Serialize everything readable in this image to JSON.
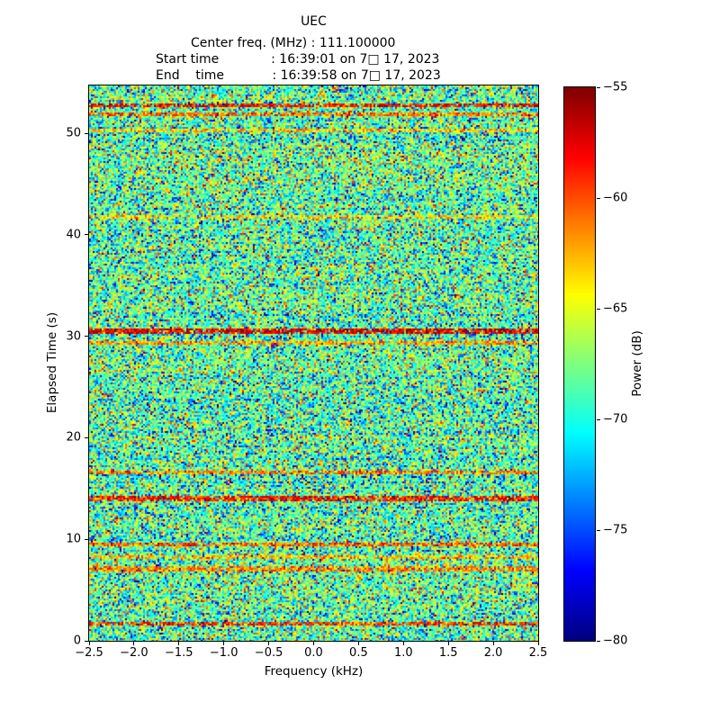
{
  "header": {
    "title": "UEC",
    "center_line": "Center freq. (MHz) : 111.100000",
    "start_line": "Start time             : 16:39:01 on 7□ 17, 2023",
    "end_line": "End    time            : 16:39:58 on 7□ 17, 2023"
  },
  "chart_data": {
    "type": "heatmap",
    "title": "UEC",
    "xlabel": "Frequency (kHz)",
    "ylabel": "Elapsed Time (s)",
    "xlim": [
      -2.5,
      2.5
    ],
    "ylim": [
      0,
      54.7
    ],
    "grid": false,
    "colormap": "jet",
    "xticks": [
      {
        "v": -2.5,
        "label": "−2.5"
      },
      {
        "v": -2.0,
        "label": "−2.0"
      },
      {
        "v": -1.5,
        "label": "−1.5"
      },
      {
        "v": -1.0,
        "label": "−1.0"
      },
      {
        "v": -0.5,
        "label": "−0.5"
      },
      {
        "v": 0.0,
        "label": "0.0"
      },
      {
        "v": 0.5,
        "label": "0.5"
      },
      {
        "v": 1.0,
        "label": "1.0"
      },
      {
        "v": 1.5,
        "label": "1.5"
      },
      {
        "v": 2.0,
        "label": "2.0"
      },
      {
        "v": 2.5,
        "label": "2.5"
      }
    ],
    "yticks": [
      {
        "v": 0,
        "label": "0"
      },
      {
        "v": 10,
        "label": "10"
      },
      {
        "v": 20,
        "label": "20"
      },
      {
        "v": 30,
        "label": "30"
      },
      {
        "v": 40,
        "label": "40"
      },
      {
        "v": 50,
        "label": "50"
      }
    ],
    "colorbar": {
      "label": "Power (dB)",
      "vmin": -80,
      "vmax": -55,
      "ticks": [
        {
          "v": -55,
          "label": "−55"
        },
        {
          "v": -60,
          "label": "−60"
        },
        {
          "v": -65,
          "label": "−65"
        },
        {
          "v": -70,
          "label": "−70"
        },
        {
          "v": -75,
          "label": "−75"
        },
        {
          "v": -80,
          "label": "−80"
        }
      ]
    },
    "noise": {
      "mean_db": -68.5,
      "std_db": 4.2,
      "row_std_db": 0.7,
      "seed": 1337
    },
    "stripes": [
      {
        "time": 52.7,
        "level_db": -58.5
      },
      {
        "time": 51.8,
        "level_db": -61.0
      },
      {
        "time": 50.3,
        "level_db": -63.5
      },
      {
        "time": 41.8,
        "level_db": -64.0
      },
      {
        "time": 30.5,
        "level_db": -57.5
      },
      {
        "time": 29.3,
        "level_db": -62.0
      },
      {
        "time": 16.6,
        "level_db": -61.5
      },
      {
        "time": 14.0,
        "level_db": -58.5
      },
      {
        "time": 9.5,
        "level_db": -60.5
      },
      {
        "time": 8.3,
        "level_db": -63.0
      },
      {
        "time": 7.1,
        "level_db": -61.5
      },
      {
        "time": 1.7,
        "level_db": -59.5
      }
    ]
  }
}
